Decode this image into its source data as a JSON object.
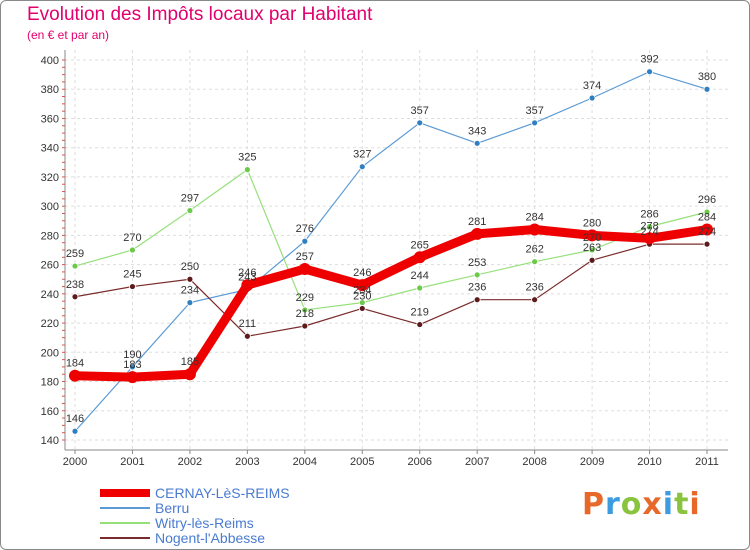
{
  "title": "Evolution des Impôts locaux par Habitant",
  "subtitle": "(en € et par an)",
  "logo": {
    "text": "Proxiti",
    "colors": [
      "#e8682a",
      "#3d9be0",
      "#8ac43f",
      "#e8682a",
      "#3d9be0",
      "#8ac43f",
      "#e8682a"
    ]
  },
  "chart_data": {
    "type": "line",
    "title": "Evolution des Impôts locaux par Habitant",
    "subtitle": "(en € et par an)",
    "x": [
      "2000",
      "2001",
      "2002",
      "2003",
      "2004",
      "2005",
      "2006",
      "2007",
      "2008",
      "2009",
      "2010",
      "2011"
    ],
    "ylim": [
      140,
      400
    ],
    "yticks": [
      140,
      160,
      180,
      200,
      220,
      240,
      260,
      280,
      300,
      320,
      340,
      360,
      380,
      400
    ],
    "grid": true,
    "legend": "bottom-left",
    "series": [
      {
        "name": "Berru",
        "color": "#5b9bd5",
        "marker": "#2f7fc1",
        "width": 1.2,
        "values": [
          146,
          190,
          234,
          243,
          276,
          327,
          357,
          343,
          357,
          374,
          392,
          380
        ]
      },
      {
        "name": "Witry-lès-Reims",
        "color": "#96e07a",
        "marker": "#6cc94a",
        "width": 1.2,
        "values": [
          259,
          270,
          297,
          325,
          229,
          234,
          244,
          253,
          262,
          270,
          286,
          296
        ]
      },
      {
        "name": "Nogent-l'Abbesse",
        "color": "#7a2b2b",
        "marker": "#5c1a1a",
        "width": 1.2,
        "values": [
          238,
          245,
          250,
          211,
          218,
          230,
          219,
          236,
          236,
          263,
          274,
          274
        ]
      },
      {
        "name": "CERNAY-LèS-REIMS",
        "color": "#ee0000",
        "marker": "#ee0000",
        "width": 9,
        "values": [
          184,
          183,
          185,
          246,
          257,
          246,
          265,
          281,
          284,
          280,
          278,
          284
        ]
      }
    ],
    "legend_order": [
      "CERNAY-LèS-REIMS",
      "Berru",
      "Witry-lès-Reims",
      "Nogent-l'Abbesse"
    ]
  }
}
